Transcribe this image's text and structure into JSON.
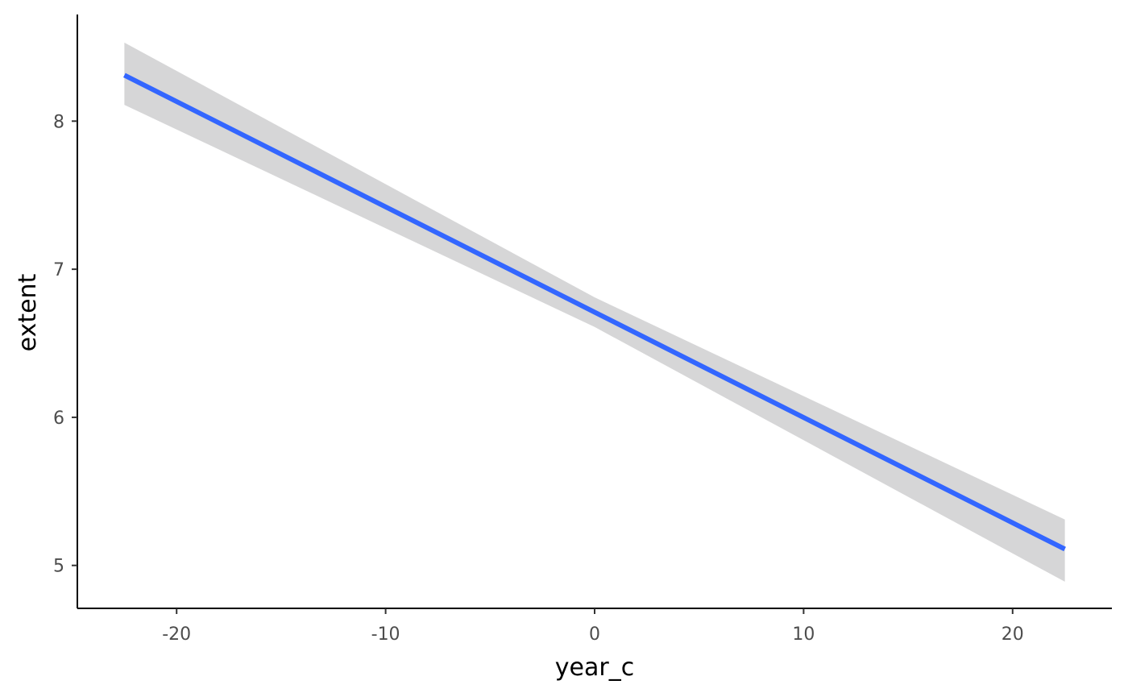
{
  "chart_data": {
    "type": "line",
    "xlabel": "year_c",
    "ylabel": "extent",
    "xlim": [
      -24.75,
      24.75
    ],
    "ylim": [
      4.71,
      8.72
    ],
    "x_ticks": [
      -20,
      -10,
      0,
      10,
      20
    ],
    "x_tick_labels": [
      "-20",
      "-10",
      "0",
      "10",
      "20"
    ],
    "y_ticks": [
      5,
      6,
      7,
      8
    ],
    "y_tick_labels": [
      "5",
      "6",
      "7",
      "8"
    ],
    "grid": false,
    "legend": "none",
    "series": [
      {
        "kind": "fit-line",
        "color": "#3366ff",
        "x": [
          -22.5,
          0,
          22.5
        ],
        "y": [
          8.31,
          6.71,
          5.11
        ]
      },
      {
        "kind": "confidence-band",
        "color": "#d6d6d7",
        "x": [
          -22.5,
          0,
          22.5
        ],
        "ymin": [
          8.11,
          6.61,
          4.89
        ],
        "ymax": [
          8.53,
          6.81,
          5.31
        ]
      }
    ]
  }
}
